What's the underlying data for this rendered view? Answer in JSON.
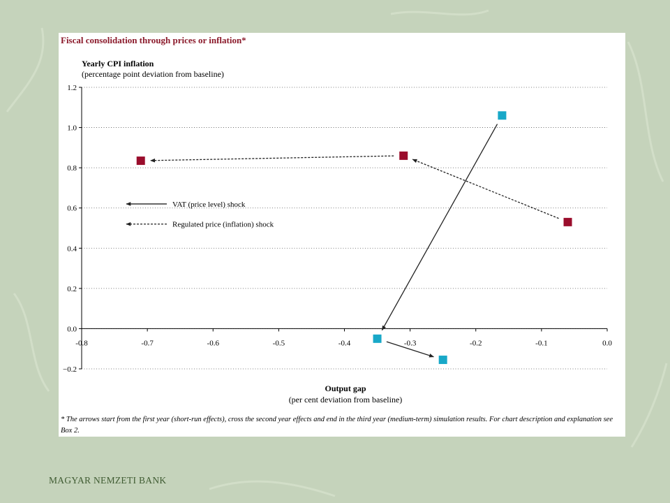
{
  "logo_text": "MAGYAR NEMZETI BANK",
  "colors": {
    "background": "#c5d3bb",
    "logo": "#3f5b32",
    "title": "#8b1a2b",
    "vat": "#18a8c8",
    "regulated": "#9a0d2c"
  },
  "chart_data": {
    "type": "scatter",
    "title": "Fiscal consolidation through prices or inflation*",
    "ylabel": "Yearly CPI inflation",
    "ylabel_sub": "(percentage point deviation from baseline)",
    "xlabel": "Output gap",
    "xlabel_sub": "(per cent deviation from baseline)",
    "xlim": [
      -0.8,
      0.0
    ],
    "ylim": [
      -0.2,
      1.2
    ],
    "x_ticks": [
      -0.8,
      -0.7,
      -0.6,
      -0.5,
      -0.4,
      -0.3,
      -0.2,
      -0.1,
      0.0
    ],
    "y_ticks": [
      -0.2,
      0.0,
      0.2,
      0.4,
      0.6,
      0.8,
      1.0,
      1.2
    ],
    "x_tick_labels": [
      "-0.8",
      "-0.7",
      "-0.6",
      "-0.5",
      "-0.4",
      "-0.3",
      "-0.2",
      "-0.1",
      "0.0"
    ],
    "y_tick_labels": [
      "−0.2",
      "0.0",
      "0.2",
      "0.4",
      "0.6",
      "0.8",
      "1.0",
      "1.2"
    ],
    "grid": "horizontal-dotted",
    "series": [
      {
        "name": "VAT (price level) shock",
        "marker_color": "#18a8c8",
        "line_style": "solid",
        "points": [
          {
            "x": -0.16,
            "y": 1.06
          },
          {
            "x": -0.35,
            "y": -0.05
          },
          {
            "x": -0.25,
            "y": -0.155
          }
        ]
      },
      {
        "name": "Regulated price (inflation) shock",
        "marker_color": "#9a0d2c",
        "line_style": "dashed",
        "points": [
          {
            "x": -0.06,
            "y": 0.53
          },
          {
            "x": -0.31,
            "y": 0.86
          },
          {
            "x": -0.71,
            "y": 0.835
          }
        ]
      }
    ],
    "legend_placement": "left, inside plot",
    "footnote": "* The arrows start from the first year (short-run effects), cross the second year effects and end in the third year (medium-term) simulation results. For chart description and explanation see Box 2."
  }
}
